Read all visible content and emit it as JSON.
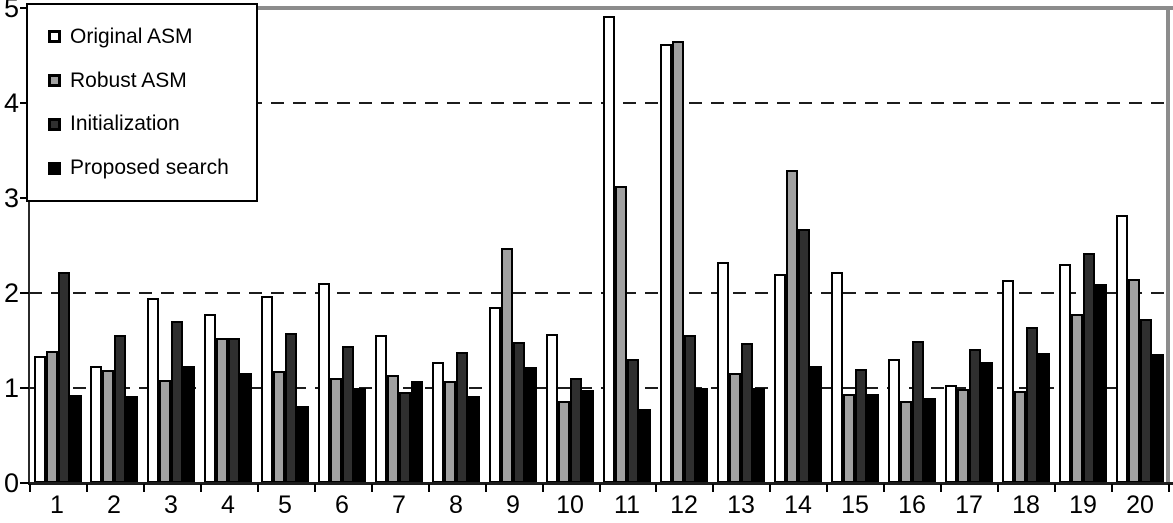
{
  "chart_data": {
    "type": "bar",
    "title": "",
    "xlabel": "",
    "ylabel": "",
    "ylim": [
      0,
      5
    ],
    "yticks": [
      "0",
      "1",
      "2",
      "3",
      "4",
      "5"
    ],
    "gridlines_dashed_at": [
      1,
      2,
      4
    ],
    "grid": "horizontal dashed black lines at y=1, 2 and 4; solid gray frame line at top (y=5) and right edge",
    "legend_position": "top-left",
    "frame_color": "#8c8c8c",
    "axis_color": "#000000",
    "categories": [
      "1",
      "2",
      "3",
      "4",
      "5",
      "6",
      "7",
      "8",
      "9",
      "10",
      "11",
      "12",
      "13",
      "14",
      "15",
      "16",
      "17",
      "18",
      "19",
      "20"
    ],
    "series": [
      {
        "name": "Original ASM",
        "color": "#ffffff",
        "values": [
          1.34,
          1.23,
          1.95,
          1.78,
          1.97,
          2.11,
          1.56,
          1.27,
          1.85,
          1.57,
          4.92,
          4.62,
          2.33,
          2.2,
          2.22,
          1.3,
          1.03,
          2.14,
          2.31,
          2.82
        ]
      },
      {
        "name": "Robust ASM",
        "color": "#a0a0a0",
        "values": [
          1.39,
          1.19,
          1.08,
          1.53,
          1.18,
          1.1,
          1.14,
          1.07,
          2.47,
          0.86,
          3.13,
          4.65,
          1.16,
          3.29,
          0.94,
          0.86,
          0.99,
          0.97,
          1.78,
          2.15
        ]
      },
      {
        "name": "Initialization",
        "color": "#2f2f2f",
        "values": [
          2.22,
          1.56,
          1.7,
          1.53,
          1.58,
          1.44,
          0.96,
          1.38,
          1.48,
          1.11,
          1.31,
          1.56,
          1.47,
          2.67,
          1.2,
          1.49,
          1.41,
          1.64,
          2.42,
          1.73
        ]
      },
      {
        "name": "Proposed search",
        "color": "#000000",
        "values": [
          0.93,
          0.92,
          1.23,
          1.16,
          0.81,
          1.0,
          1.07,
          0.92,
          1.22,
          0.98,
          0.78,
          1.0,
          1.0,
          1.23,
          0.94,
          0.89,
          1.27,
          1.37,
          2.09,
          1.36
        ]
      }
    ]
  }
}
